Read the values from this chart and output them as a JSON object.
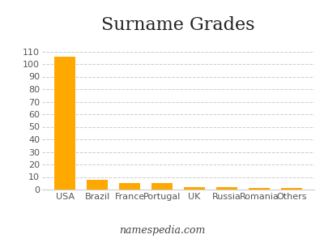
{
  "title": "Surname Grades",
  "categories": [
    "USA",
    "Brazil",
    "France",
    "Portugal",
    "UK",
    "Russia",
    "Romania",
    "Others"
  ],
  "values": [
    106,
    8,
    5,
    5,
    2,
    2,
    1,
    1
  ],
  "bar_color": "#FFA800",
  "background_color": "#ffffff",
  "ylim": [
    0,
    120
  ],
  "yticks": [
    0,
    10,
    20,
    30,
    40,
    50,
    60,
    70,
    80,
    90,
    100,
    110
  ],
  "grid_color": "#cccccc",
  "title_fontsize": 16,
  "tick_fontsize": 8,
  "footer_text": "namespedia.com",
  "footer_fontsize": 9
}
